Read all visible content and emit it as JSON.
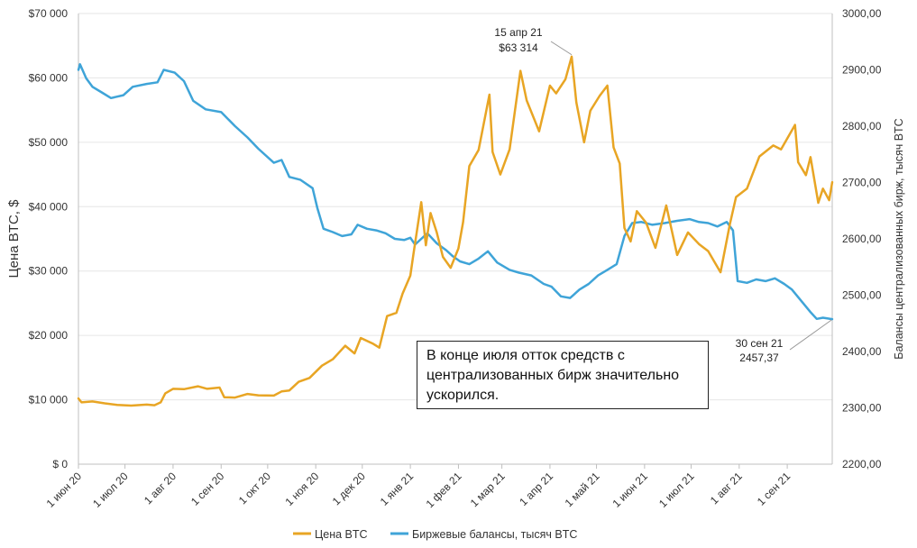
{
  "colors": {
    "price": "#E8A524",
    "balance": "#3FA4D8",
    "grid": "#E6E6E6",
    "axis": "#BFBFBF"
  },
  "chart_data": {
    "type": "line",
    "title": "",
    "xlabel": "",
    "ylabel": "Цена BTC, $",
    "y2label": "Балансы централизованных бирж, тысяч BTC",
    "ylim": [
      0,
      70000
    ],
    "y2lim": [
      2200,
      3000
    ],
    "x_range": [
      "2020-06-01",
      "2021-09-30"
    ],
    "yticks": [
      {
        "value": 0,
        "label": "$ 0"
      },
      {
        "value": 10000,
        "label": "$10 000"
      },
      {
        "value": 20000,
        "label": "$20 000"
      },
      {
        "value": 30000,
        "label": "$30 000"
      },
      {
        "value": 40000,
        "label": "$40 000"
      },
      {
        "value": 50000,
        "label": "$50 000"
      },
      {
        "value": 60000,
        "label": "$60 000"
      },
      {
        "value": 70000,
        "label": "$70 000"
      }
    ],
    "y2ticks": [
      {
        "value": 2200,
        "label": "2200,00"
      },
      {
        "value": 2300,
        "label": "2300,00"
      },
      {
        "value": 2400,
        "label": "2400,00"
      },
      {
        "value": 2500,
        "label": "2500,00"
      },
      {
        "value": 2600,
        "label": "2600,00"
      },
      {
        "value": 2700,
        "label": "2700,00"
      },
      {
        "value": 2800,
        "label": "2800,00"
      },
      {
        "value": 2900,
        "label": "2900,00"
      },
      {
        "value": 3000,
        "label": "3000,00"
      }
    ],
    "xticks": [
      {
        "date": "2020-06-01",
        "label": "1 июн 20"
      },
      {
        "date": "2020-07-01",
        "label": "1 июл 20"
      },
      {
        "date": "2020-08-01",
        "label": "1 авг 20"
      },
      {
        "date": "2020-09-01",
        "label": "1 сен 20"
      },
      {
        "date": "2020-10-01",
        "label": "1 окт 20"
      },
      {
        "date": "2020-11-01",
        "label": "1 ноя 20"
      },
      {
        "date": "2020-12-01",
        "label": "1 дек 20"
      },
      {
        "date": "2021-01-01",
        "label": "1 янв 21"
      },
      {
        "date": "2021-02-01",
        "label": "1 фев 21"
      },
      {
        "date": "2021-03-01",
        "label": "1 мар 21"
      },
      {
        "date": "2021-04-01",
        "label": "1 апр 21"
      },
      {
        "date": "2021-05-01",
        "label": "1 май 21"
      },
      {
        "date": "2021-06-01",
        "label": "1 июн 21"
      },
      {
        "date": "2021-07-01",
        "label": "1 июл 21"
      },
      {
        "date": "2021-08-01",
        "label": "1 авг 21"
      },
      {
        "date": "2021-09-01",
        "label": "1 сен 21"
      }
    ],
    "series": [
      {
        "name": "Цена BTC",
        "axis": "left",
        "points": [
          [
            "2020-06-01",
            10200
          ],
          [
            "2020-06-03",
            9600
          ],
          [
            "2020-06-10",
            9750
          ],
          [
            "2020-06-18",
            9450
          ],
          [
            "2020-06-26",
            9200
          ],
          [
            "2020-07-05",
            9100
          ],
          [
            "2020-07-15",
            9250
          ],
          [
            "2020-07-20",
            9150
          ],
          [
            "2020-07-24",
            9600
          ],
          [
            "2020-07-27",
            11000
          ],
          [
            "2020-08-01",
            11700
          ],
          [
            "2020-08-08",
            11650
          ],
          [
            "2020-08-17",
            12100
          ],
          [
            "2020-08-23",
            11700
          ],
          [
            "2020-08-31",
            11900
          ],
          [
            "2020-09-03",
            10400
          ],
          [
            "2020-09-10",
            10350
          ],
          [
            "2020-09-18",
            10900
          ],
          [
            "2020-09-25",
            10700
          ],
          [
            "2020-10-05",
            10650
          ],
          [
            "2020-10-10",
            11300
          ],
          [
            "2020-10-15",
            11450
          ],
          [
            "2020-10-21",
            12800
          ],
          [
            "2020-10-28",
            13400
          ],
          [
            "2020-11-05",
            15300
          ],
          [
            "2020-11-12",
            16300
          ],
          [
            "2020-11-20",
            18400
          ],
          [
            "2020-11-26",
            17200
          ],
          [
            "2020-11-30",
            19600
          ],
          [
            "2020-12-08",
            18700
          ],
          [
            "2020-12-12",
            18100
          ],
          [
            "2020-12-17",
            23000
          ],
          [
            "2020-12-23",
            23500
          ],
          [
            "2020-12-27",
            26500
          ],
          [
            "2021-01-01",
            29300
          ],
          [
            "2021-01-03",
            32700
          ],
          [
            "2021-01-08",
            40700
          ],
          [
            "2021-01-11",
            34000
          ],
          [
            "2021-01-14",
            39000
          ],
          [
            "2021-01-18",
            36000
          ],
          [
            "2021-01-22",
            32200
          ],
          [
            "2021-01-27",
            30500
          ],
          [
            "2021-02-01",
            33500
          ],
          [
            "2021-02-04",
            37600
          ],
          [
            "2021-02-08",
            46300
          ],
          [
            "2021-02-14",
            48800
          ],
          [
            "2021-02-21",
            57400
          ],
          [
            "2021-02-23",
            48500
          ],
          [
            "2021-02-28",
            45000
          ],
          [
            "2021-03-06",
            48900
          ],
          [
            "2021-03-13",
            61100
          ],
          [
            "2021-03-17",
            56500
          ],
          [
            "2021-03-25",
            51700
          ],
          [
            "2021-04-01",
            58800
          ],
          [
            "2021-04-05",
            57600
          ],
          [
            "2021-04-11",
            59800
          ],
          [
            "2021-04-15",
            63314
          ],
          [
            "2021-04-18",
            56200
          ],
          [
            "2021-04-23",
            50000
          ],
          [
            "2021-04-27",
            54900
          ],
          [
            "2021-05-03",
            57200
          ],
          [
            "2021-05-08",
            58800
          ],
          [
            "2021-05-12",
            49200
          ],
          [
            "2021-05-16",
            46700
          ],
          [
            "2021-05-19",
            36700
          ],
          [
            "2021-05-23",
            34600
          ],
          [
            "2021-05-27",
            39300
          ],
          [
            "2021-06-02",
            37500
          ],
          [
            "2021-06-08",
            33600
          ],
          [
            "2021-06-15",
            40200
          ],
          [
            "2021-06-22",
            32500
          ],
          [
            "2021-06-29",
            36000
          ],
          [
            "2021-07-06",
            34200
          ],
          [
            "2021-07-12",
            33100
          ],
          [
            "2021-07-20",
            29800
          ],
          [
            "2021-07-26",
            37300
          ],
          [
            "2021-07-30",
            41500
          ],
          [
            "2021-08-06",
            42800
          ],
          [
            "2021-08-14",
            47800
          ],
          [
            "2021-08-23",
            49500
          ],
          [
            "2021-08-28",
            48900
          ],
          [
            "2021-09-06",
            52700
          ],
          [
            "2021-09-08",
            46900
          ],
          [
            "2021-09-13",
            44900
          ],
          [
            "2021-09-16",
            47700
          ],
          [
            "2021-09-21",
            40600
          ],
          [
            "2021-09-24",
            42800
          ],
          [
            "2021-09-28",
            41000
          ],
          [
            "2021-09-30",
            43800
          ]
        ]
      },
      {
        "name": "Биржевые балансы, тысяч BTC",
        "axis": "right",
        "points": [
          [
            "2020-06-01",
            2900
          ],
          [
            "2020-06-02",
            2910
          ],
          [
            "2020-06-06",
            2885
          ],
          [
            "2020-06-10",
            2870
          ],
          [
            "2020-06-16",
            2860
          ],
          [
            "2020-06-22",
            2850
          ],
          [
            "2020-06-30",
            2855
          ],
          [
            "2020-07-06",
            2870
          ],
          [
            "2020-07-15",
            2875
          ],
          [
            "2020-07-22",
            2878
          ],
          [
            "2020-07-26",
            2900
          ],
          [
            "2020-08-02",
            2895
          ],
          [
            "2020-08-08",
            2880
          ],
          [
            "2020-08-14",
            2845
          ],
          [
            "2020-08-22",
            2830
          ],
          [
            "2020-09-01",
            2825
          ],
          [
            "2020-09-10",
            2800
          ],
          [
            "2020-09-18",
            2780
          ],
          [
            "2020-09-25",
            2760
          ],
          [
            "2020-10-05",
            2735
          ],
          [
            "2020-10-10",
            2740
          ],
          [
            "2020-10-15",
            2710
          ],
          [
            "2020-10-22",
            2705
          ],
          [
            "2020-10-30",
            2690
          ],
          [
            "2020-11-02",
            2655
          ],
          [
            "2020-11-06",
            2618
          ],
          [
            "2020-11-12",
            2612
          ],
          [
            "2020-11-18",
            2605
          ],
          [
            "2020-11-24",
            2608
          ],
          [
            "2020-11-28",
            2625
          ],
          [
            "2020-12-04",
            2618
          ],
          [
            "2020-12-10",
            2615
          ],
          [
            "2020-12-16",
            2610
          ],
          [
            "2020-12-22",
            2600
          ],
          [
            "2020-12-28",
            2598
          ],
          [
            "2021-01-01",
            2602
          ],
          [
            "2021-01-04",
            2590
          ],
          [
            "2021-01-08",
            2600
          ],
          [
            "2021-01-12",
            2610
          ],
          [
            "2021-01-18",
            2592
          ],
          [
            "2021-01-24",
            2580
          ],
          [
            "2021-01-28",
            2570
          ],
          [
            "2021-02-02",
            2560
          ],
          [
            "2021-02-08",
            2555
          ],
          [
            "2021-02-14",
            2565
          ],
          [
            "2021-02-20",
            2578
          ],
          [
            "2021-02-26",
            2558
          ],
          [
            "2021-03-06",
            2545
          ],
          [
            "2021-03-12",
            2540
          ],
          [
            "2021-03-20",
            2535
          ],
          [
            "2021-03-28",
            2520
          ],
          [
            "2021-04-02",
            2515
          ],
          [
            "2021-04-08",
            2498
          ],
          [
            "2021-04-14",
            2495
          ],
          [
            "2021-04-20",
            2510
          ],
          [
            "2021-04-26",
            2520
          ],
          [
            "2021-05-02",
            2535
          ],
          [
            "2021-05-08",
            2545
          ],
          [
            "2021-05-14",
            2555
          ],
          [
            "2021-05-19",
            2605
          ],
          [
            "2021-05-24",
            2628
          ],
          [
            "2021-05-30",
            2630
          ],
          [
            "2021-06-06",
            2625
          ],
          [
            "2021-06-14",
            2628
          ],
          [
            "2021-06-22",
            2632
          ],
          [
            "2021-06-30",
            2635
          ],
          [
            "2021-07-06",
            2630
          ],
          [
            "2021-07-12",
            2628
          ],
          [
            "2021-07-18",
            2622
          ],
          [
            "2021-07-24",
            2630
          ],
          [
            "2021-07-28",
            2615
          ],
          [
            "2021-07-31",
            2525
          ],
          [
            "2021-08-06",
            2522
          ],
          [
            "2021-08-12",
            2528
          ],
          [
            "2021-08-18",
            2525
          ],
          [
            "2021-08-24",
            2530
          ],
          [
            "2021-08-30",
            2520
          ],
          [
            "2021-09-04",
            2510
          ],
          [
            "2021-09-10",
            2490
          ],
          [
            "2021-09-16",
            2470
          ],
          [
            "2021-09-20",
            2458
          ],
          [
            "2021-09-24",
            2460
          ],
          [
            "2021-09-30",
            2457.37
          ]
        ]
      }
    ],
    "annotations": [
      {
        "id": "peak",
        "date": "2021-04-15",
        "series": "Цена BTC",
        "line1": "15 апр 21",
        "line2": "$63 314"
      },
      {
        "id": "end",
        "date": "2021-09-30",
        "series": "Биржевые балансы, тысяч BTC",
        "line1": "30 сен 21",
        "line2": "2457,37"
      }
    ],
    "legend_position": "bottom"
  },
  "note": {
    "line1": "В конце июля отток средств с",
    "line2": "централизованных бирж значительно",
    "line3": "ускорился."
  }
}
